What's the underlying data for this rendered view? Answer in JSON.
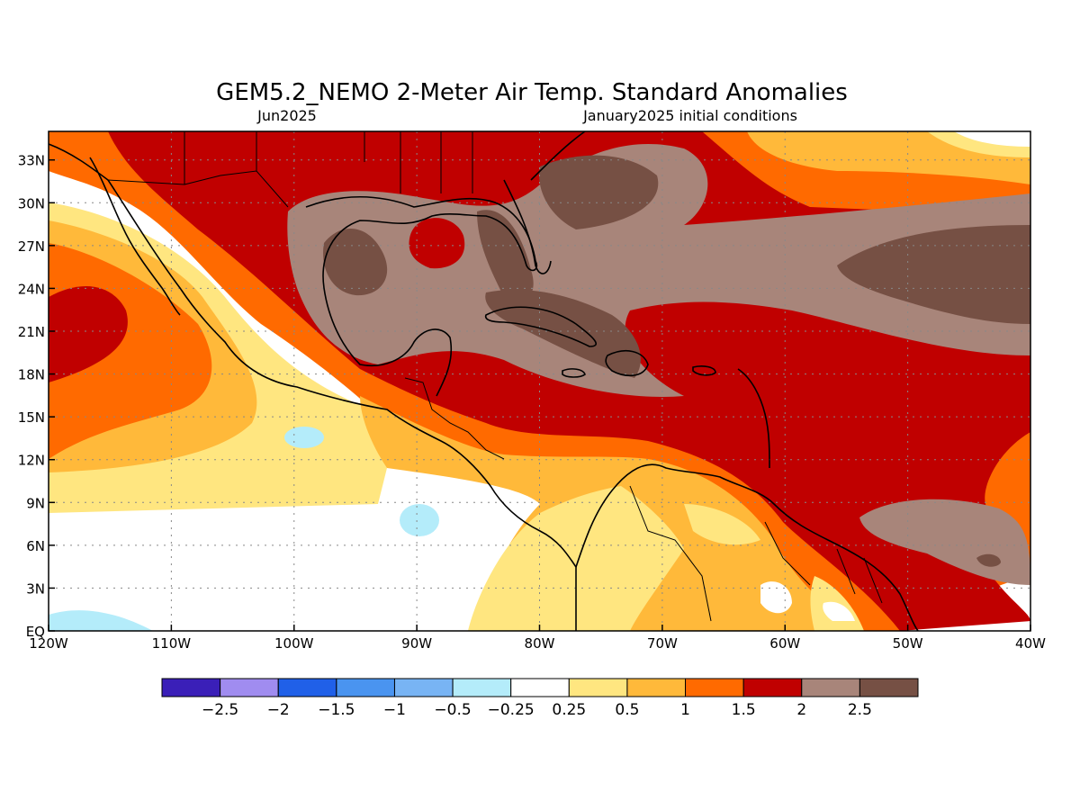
{
  "title": "GEM5.2_NEMO 2-Meter Air Temp. Standard Anomalies",
  "subtitle_left": "Jun2025",
  "subtitle_right": "January2025 initial conditions",
  "map": {
    "lon_range": [
      -120,
      -40
    ],
    "lat_range": [
      0,
      35
    ],
    "lon_ticks": [
      {
        "value": -120,
        "label": "120W"
      },
      {
        "value": -110,
        "label": "110W"
      },
      {
        "value": -100,
        "label": "100W"
      },
      {
        "value": -90,
        "label": "90W"
      },
      {
        "value": -80,
        "label": "80W"
      },
      {
        "value": -70,
        "label": "70W"
      },
      {
        "value": -60,
        "label": "60W"
      },
      {
        "value": -50,
        "label": "50W"
      },
      {
        "value": -40,
        "label": "40W"
      }
    ],
    "lat_ticks": [
      {
        "value": 0,
        "label": "EQ"
      },
      {
        "value": 3,
        "label": "3N"
      },
      {
        "value": 6,
        "label": "6N"
      },
      {
        "value": 9,
        "label": "9N"
      },
      {
        "value": 12,
        "label": "12N"
      },
      {
        "value": 15,
        "label": "15N"
      },
      {
        "value": 18,
        "label": "18N"
      },
      {
        "value": 21,
        "label": "21N"
      },
      {
        "value": 24,
        "label": "24N"
      },
      {
        "value": 27,
        "label": "27N"
      },
      {
        "value": 30,
        "label": "30N"
      },
      {
        "value": 33,
        "label": "33N"
      }
    ],
    "grid": true
  },
  "legend": {
    "colors": [
      "#3a1fb8",
      "#a08cf0",
      "#2060e8",
      "#4a94f0",
      "#78b4f4",
      "#b4ecfa",
      "#ffffff",
      "#ffe680",
      "#ffb93a",
      "#ff6a00",
      "#c00000",
      "#a8857a",
      "#765044"
    ],
    "labels": [
      "-2.5",
      "-2",
      "-1.5",
      "-1",
      "-0.5",
      "-0.25",
      "0.25",
      "0.5",
      "1",
      "1.5",
      "2",
      "2.5"
    ]
  }
}
